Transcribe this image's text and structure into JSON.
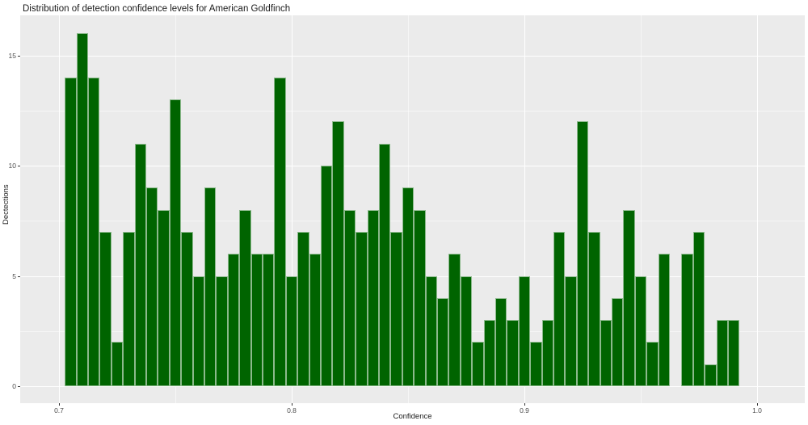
{
  "chart_data": {
    "type": "bar",
    "subtype": "histogram",
    "title": "Distribution of detection confidence levels for American Goldfinch",
    "xlabel": "Confidence",
    "ylabel": "Dectections",
    "bin_width": 0.005,
    "bin_centers": [
      0.705,
      0.71,
      0.715,
      0.72,
      0.725,
      0.73,
      0.735,
      0.74,
      0.745,
      0.75,
      0.755,
      0.76,
      0.765,
      0.77,
      0.775,
      0.78,
      0.785,
      0.79,
      0.795,
      0.8,
      0.805,
      0.81,
      0.815,
      0.82,
      0.825,
      0.83,
      0.835,
      0.84,
      0.845,
      0.85,
      0.855,
      0.86,
      0.865,
      0.87,
      0.875,
      0.88,
      0.885,
      0.89,
      0.895,
      0.9,
      0.905,
      0.91,
      0.915,
      0.92,
      0.925,
      0.93,
      0.935,
      0.94,
      0.945,
      0.95,
      0.955,
      0.96,
      0.965,
      0.97,
      0.975,
      0.98,
      0.985,
      0.99
    ],
    "values": [
      14,
      16,
      14,
      7,
      2,
      7,
      11,
      9,
      8,
      13,
      7,
      5,
      9,
      5,
      6,
      8,
      6,
      6,
      14,
      5,
      7,
      6,
      10,
      12,
      8,
      7,
      8,
      11,
      7,
      9,
      8,
      5,
      4,
      6,
      5,
      2,
      3,
      4,
      3,
      5,
      2,
      3,
      7,
      5,
      12,
      7,
      3,
      4,
      8,
      5,
      2,
      6,
      0,
      6,
      7,
      1,
      3,
      3
    ],
    "x_ticks": [
      {
        "value": 0.7,
        "label": "0.7"
      },
      {
        "value": 0.8,
        "label": "0.8"
      },
      {
        "value": 0.9,
        "label": "0.9"
      },
      {
        "value": 1.0,
        "label": "1.0"
      }
    ],
    "y_ticks": [
      {
        "value": 0,
        "label": "0"
      },
      {
        "value": 5,
        "label": "5"
      },
      {
        "value": 10,
        "label": "10"
      },
      {
        "value": 15,
        "label": "15"
      }
    ],
    "x_minor_gridlines": [
      0.75,
      0.85,
      0.95
    ],
    "y_minor_gridlines": [
      2.5,
      7.5,
      12.5
    ],
    "xlim": [
      0.6833,
      1.0205
    ],
    "ylim": [
      -0.82,
      16.77
    ],
    "grid": true,
    "legend": "none",
    "colors": {
      "bar_fill": "#006400",
      "bar_edge_tint": "rgba(255,255,255,0.55)",
      "panel_background": "#ebebeb",
      "major_gridline": "#ffffff",
      "minor_gridline": "rgba(255,255,255,0.55)",
      "tick_label_text": "#4d4d4d",
      "title_text": "#1a1a1a"
    }
  }
}
